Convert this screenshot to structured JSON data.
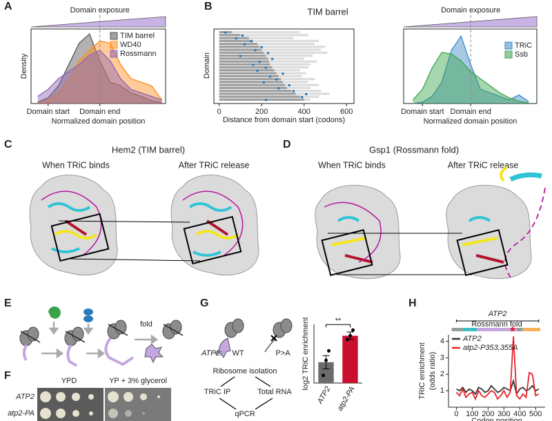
{
  "figure": {
    "labels": [
      "A",
      "B",
      "C",
      "D",
      "E",
      "F",
      "G",
      "H"
    ],
    "C": {
      "title": "Hem2 (TIM barrel)",
      "left": "When TRiC binds",
      "right": "After TRiC release"
    },
    "D": {
      "title": "Gsp1 (Rossmann fold)",
      "left": "When TRiC binds",
      "right": "After TRiC release"
    },
    "E": {
      "step": "fold"
    },
    "F": {
      "conditions": [
        "YPD",
        "YP + 3% glycerol"
      ],
      "strains": [
        "ATP2",
        "atp2-PA"
      ]
    },
    "G": {
      "gene": "ATP2:",
      "variants": [
        "WT",
        "P>A"
      ],
      "steps": [
        "Ribosome isolation",
        "TRiC IP",
        "Total RNA",
        "qPCR"
      ]
    }
  },
  "chart_data": [
    {
      "type": "area",
      "header": "Domain exposure",
      "ylabel": "Density",
      "xlabel": "Normalized domain position",
      "x": [
        -0.2,
        0,
        0.2,
        0.4,
        0.6,
        0.8,
        1.0,
        1.2,
        1.4,
        1.6,
        1.8,
        2.0,
        2.2
      ],
      "xlim": [
        -0.33,
        2.27
      ],
      "xticks": [
        {
          "value": 0,
          "label": "Domain start"
        },
        {
          "value": 1,
          "label": "Domain end"
        }
      ],
      "ylim": [
        0,
        1.05
      ],
      "series": [
        {
          "name": "TIM barrel",
          "color": "#555555",
          "values": [
            0.02,
            0.08,
            0.25,
            0.55,
            0.85,
            0.98,
            0.6,
            0.3,
            0.25,
            0.15,
            0.1,
            0.04,
            0.01
          ]
        },
        {
          "name": "WD40",
          "color": "#ff8c1a",
          "values": [
            0.01,
            0.05,
            0.15,
            0.35,
            0.6,
            0.75,
            0.88,
            0.85,
            0.55,
            0.35,
            0.3,
            0.25,
            0.05
          ]
        },
        {
          "name": "Rossmann",
          "color": "#8e63b5",
          "values": [
            0.1,
            0.2,
            0.35,
            0.45,
            0.55,
            0.68,
            0.75,
            0.6,
            0.35,
            0.2,
            0.15,
            0.1,
            0.05
          ]
        }
      ]
    },
    {
      "type": "range-bar",
      "title": "TIM barrel",
      "ylabel": "Domain",
      "xlabel": "Distance from domain start (codons)",
      "xlim": [
        -25,
        635
      ],
      "xticks": [
        0,
        200,
        400,
        600
      ],
      "segment_color": "#9e9e9e",
      "length_color": "#dcdcdc",
      "dot_color": "#2b7bba",
      "segments": [
        60,
        100,
        140,
        160,
        180,
        190,
        200,
        210,
        220,
        230,
        235,
        240,
        250,
        260,
        270,
        280,
        290,
        300,
        310,
        320,
        340,
        360,
        380,
        400
      ],
      "lengths": [
        380,
        420,
        350,
        470,
        450,
        500,
        480,
        510,
        440,
        400,
        460,
        430,
        420,
        380,
        410,
        390,
        450,
        420,
        470,
        430,
        480,
        520,
        470,
        430
      ],
      "dots": [
        30,
        110,
        80,
        150,
        120,
        200,
        170,
        230,
        100,
        250,
        190,
        160,
        220,
        180,
        300,
        240,
        270,
        210,
        330,
        280,
        350,
        410,
        390,
        220
      ]
    },
    {
      "type": "area",
      "header": "Domain exposure",
      "xlabel": "Normalized domain position",
      "x": [
        -0.2,
        0,
        0.2,
        0.4,
        0.6,
        0.8,
        1.0,
        1.2,
        1.4,
        1.6,
        1.8,
        2.0,
        2.2
      ],
      "xlim": [
        -0.39,
        2.37
      ],
      "xticks": [
        {
          "value": 0,
          "label": "Domain start"
        },
        {
          "value": 1,
          "label": "Domain end"
        }
      ],
      "ylim": [
        0,
        1.05
      ],
      "series": [
        {
          "name": "TRiC",
          "color": "#3a87c8",
          "values": [
            0,
            0.02,
            0.1,
            0.3,
            0.75,
            0.95,
            0.55,
            0.2,
            0.15,
            0.1,
            0.05,
            0.12,
            0.03
          ]
        },
        {
          "name": "Ssb",
          "color": "#3aa34a",
          "values": [
            0.05,
            0.2,
            0.5,
            0.72,
            0.7,
            0.6,
            0.45,
            0.35,
            0.25,
            0.15,
            0.08,
            0.03,
            0.01
          ]
        }
      ]
    },
    {
      "type": "bar",
      "ylabel": "log2 TRiC enrichment",
      "categories": [
        "ATP2",
        "atp2-PA"
      ],
      "values": [
        1.1,
        2.5
      ],
      "errors": [
        0.35,
        0.2
      ],
      "points": [
        [
          0.4,
          1.2,
          1.7
        ],
        [
          2.3,
          2.5,
          2.8
        ]
      ],
      "colors": [
        "#6b6b6b",
        "#c8102e"
      ],
      "ylim": [
        0,
        3.1
      ],
      "significance": "**"
    },
    {
      "type": "line",
      "gene": "ATP2",
      "domain_label": "Rossmann fold",
      "segments": [
        {
          "start": -30,
          "end": 40,
          "color": "#9a9a9a"
        },
        {
          "start": 40,
          "end": 130,
          "color": "#3bbfc4"
        },
        {
          "start": 130,
          "end": 380,
          "color": "#c7a6e0"
        },
        {
          "start": 380,
          "end": 420,
          "color": "#9a9a9a"
        },
        {
          "start": 420,
          "end": 530,
          "color": "#f7b35a"
        }
      ],
      "star": 355,
      "ylabel": [
        "TRiC enrichment",
        "(odds ratio)"
      ],
      "xlabel": "Codon position",
      "x": [
        0,
        20,
        40,
        60,
        80,
        100,
        120,
        140,
        160,
        180,
        200,
        220,
        240,
        260,
        280,
        300,
        320,
        340,
        360,
        380,
        400,
        420,
        440,
        460,
        480,
        500,
        520
      ],
      "xlim": [
        -50,
        560
      ],
      "xticks": [
        0,
        100,
        200,
        300,
        400,
        500
      ],
      "ylim": [
        0,
        4.4
      ],
      "yticks": [
        1,
        2,
        3,
        4
      ],
      "series": [
        {
          "name": "ATP2",
          "color": "#333333",
          "values": [
            1.1,
            1.0,
            1.2,
            0.9,
            1.1,
            1.0,
            0.8,
            1.2,
            1.1,
            0.9,
            1.0,
            1.3,
            1.1,
            0.9,
            1.0,
            1.2,
            1.1,
            1.0,
            1.6,
            0.8,
            1.1,
            1.2,
            1.0,
            1.1,
            1.3,
            1.0,
            1.1
          ]
        },
        {
          "name": "atp2-P353,355A",
          "color": "#e8202a",
          "values": [
            0.9,
            0.7,
            1.1,
            0.6,
            0.8,
            0.9,
            0.5,
            1.0,
            0.7,
            0.6,
            0.8,
            1.0,
            0.9,
            0.5,
            0.7,
            1.0,
            0.6,
            0.9,
            4.3,
            0.7,
            0.5,
            0.8,
            0.6,
            2.1,
            2.0,
            0.7,
            0.8
          ]
        }
      ]
    }
  ]
}
